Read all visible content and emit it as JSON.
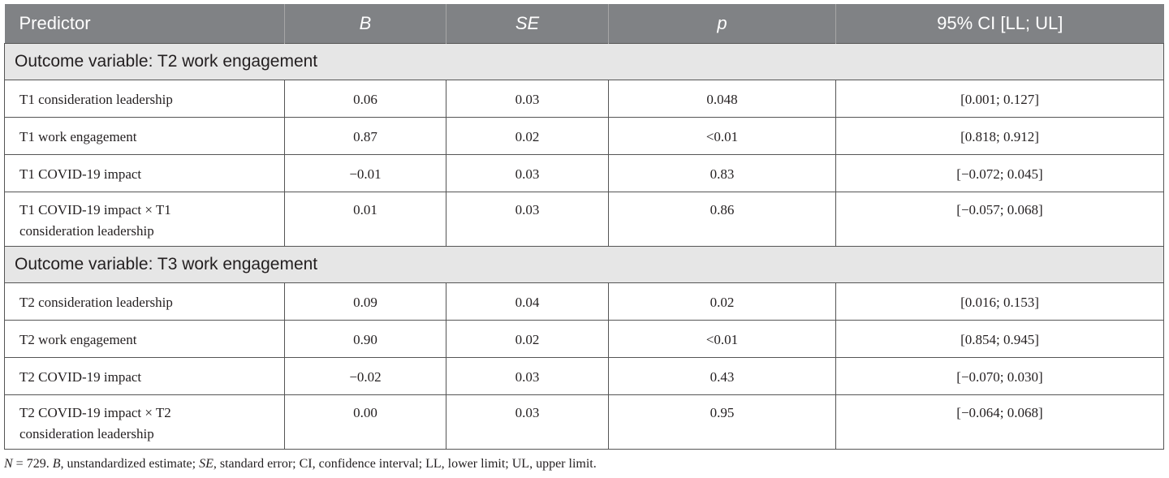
{
  "table": {
    "header": [
      "Predictor",
      "B",
      "SE",
      "p",
      "95% CI [LL; UL]"
    ],
    "sections": [
      {
        "title": "Outcome variable: T2 work engagement",
        "rows": [
          [
            "T1 consideration leadership",
            "0.06",
            "0.03",
            "0.048",
            "[0.001; 0.127]"
          ],
          [
            "T1 work engagement",
            "0.87",
            "0.02",
            "<0.01",
            "[0.818; 0.912]"
          ],
          [
            "T1 COVID-19 impact",
            "−0.01",
            "0.03",
            "0.83",
            "[−0.072; 0.045]"
          ],
          [
            "T1 COVID-19 impact × T1 consideration leadership",
            "0.01",
            "0.03",
            "0.86",
            "[−0.057; 0.068]"
          ]
        ]
      },
      {
        "title": "Outcome variable: T3 work engagement",
        "rows": [
          [
            "T2 consideration leadership",
            "0.09",
            "0.04",
            "0.02",
            "[0.016; 0.153]"
          ],
          [
            "T2 work engagement",
            "0.90",
            "0.02",
            "<0.01",
            "[0.854; 0.945]"
          ],
          [
            "T2 COVID-19 impact",
            "−0.02",
            "0.03",
            "0.43",
            "[−0.070; 0.030]"
          ],
          [
            "T2 COVID-19 impact × T2 consideration leadership",
            "0.00",
            "0.03",
            "0.95",
            "[−0.064; 0.068]"
          ]
        ]
      }
    ]
  },
  "footnote": [
    "N",
    " = 729. ",
    "B",
    ", unstandardized estimate; ",
    "SE",
    ", standard error; CI, confidence interval; LL, lower limit; UL, upper limit."
  ]
}
